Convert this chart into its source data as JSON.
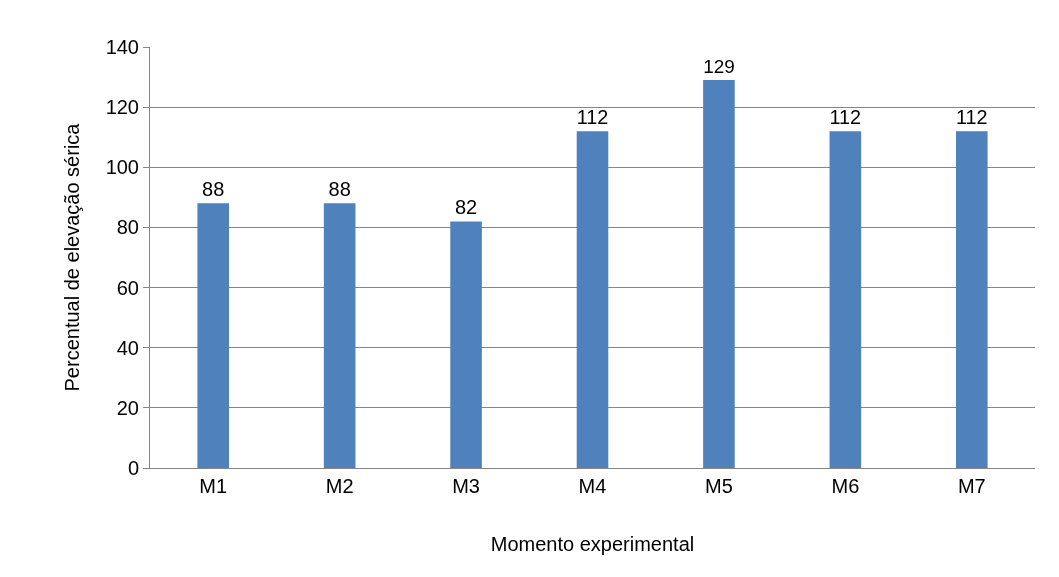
{
  "chart_data": {
    "type": "bar",
    "xlabel": "Momento experimental",
    "ylabel": "Percentual de elevação sérica",
    "categories": [
      "M1",
      "M2",
      "M3",
      "M4",
      "M5",
      "M6",
      "M7"
    ],
    "values": [
      88,
      88,
      82,
      112,
      129,
      112,
      112
    ],
    "color": "#4f81bd",
    "ylim": [
      0,
      140
    ],
    "yticks": [
      0,
      20,
      40,
      60,
      80,
      100,
      120,
      140
    ],
    "grid": "y",
    "data_labels": true
  }
}
